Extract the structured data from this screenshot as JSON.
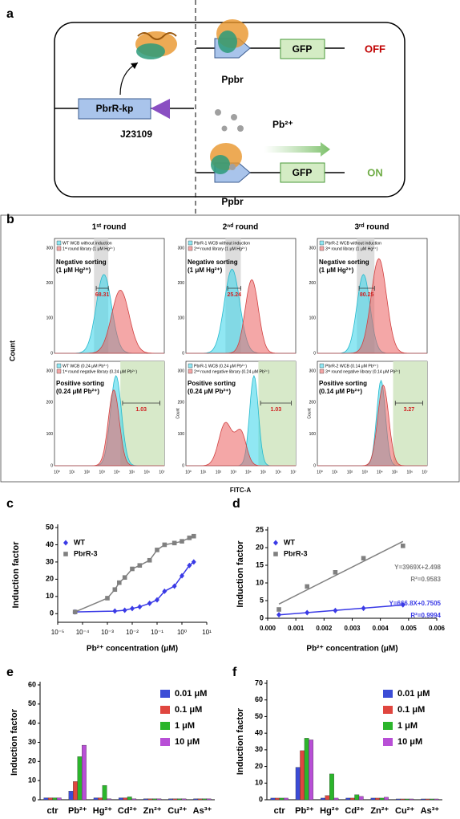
{
  "diagram": {
    "label": "a",
    "gene": "PbrR-kp",
    "promoter_left": "J23109",
    "gfp_top": "GFP",
    "gfp_bottom": "GFP",
    "off": "OFF",
    "on": "ON",
    "ppbr_top": "Ppbr",
    "ppbr_bottom": "Ppbr",
    "ion": "Pb²⁺"
  },
  "flow": {
    "label": "b",
    "rounds": [
      "1ˢᵗ round",
      "2ⁿᵈ round",
      "3ʳᵈ round"
    ],
    "xticks": [
      "10⁰",
      "10¹",
      "10²",
      "10³",
      "10⁴",
      "10⁵",
      "10⁶",
      "10⁷"
    ],
    "xlabel": "FITC-A",
    "ylabel": "Count",
    "panels": [
      {
        "legend": [
          "WT WCB without induction",
          "1ˢᵗ round library (1 μM Hg²⁺)"
        ],
        "sorting": [
          "Negative sorting",
          "(1 μM Hg²⁺)"
        ],
        "value": "68.31",
        "yticks": [
          "0",
          "100",
          "200",
          "300"
        ]
      },
      {
        "legend": [
          "PbrR-1 WCB without induction",
          "2ⁿᵈ round library (1 μM Hg²⁺)"
        ],
        "sorting": [
          "Negative sorting",
          "(1 μM Hg²⁺)"
        ],
        "value": "25.24",
        "yticks": [
          "0",
          "100",
          "200",
          "300"
        ]
      },
      {
        "legend": [
          "PbrR-2 WCB without induction",
          "3ʳᵈ round library (1 μM Hg²⁺)"
        ],
        "sorting": [
          "Negative sorting",
          "(1 μM Hg²⁺)"
        ],
        "value": "80.25",
        "yticks": [
          "0",
          "100",
          "200",
          "300"
        ]
      },
      {
        "legend": [
          "WT WCB (0.24 μM Pb²⁺)",
          "1ˢᵗ round negative library (0.24 μM Pb²⁺)"
        ],
        "sorting": [
          "Positive sorting",
          "(0.24 μM Pb²⁺)"
        ],
        "value": "1.03",
        "yticks": [
          "0",
          "100",
          "200",
          "300"
        ]
      },
      {
        "legend": [
          "PbrR-1 WCB (0.24 μM Pb²⁺)",
          "2ⁿᵈ round negative library (0.24 μM Pb²⁺)"
        ],
        "sorting": [
          "Positive sorting",
          "(0.24 μM Pb²⁺)"
        ],
        "value": "1.03",
        "yticks": [
          "0",
          "100",
          "200",
          "300"
        ]
      },
      {
        "legend": [
          "PbrR-2 WCB (0.14 μM Pb²⁺)",
          "3ʳᵈ round negative library (0.14 μM Pb²⁺)"
        ],
        "sorting": [
          "Positive sorting",
          "(0.14 μM Pb²⁺)"
        ],
        "value": "3.27",
        "yticks": [
          "0",
          "100",
          "200",
          "300"
        ]
      }
    ]
  },
  "chart_data": [
    {
      "type": "line",
      "label": "c",
      "xscale": "log",
      "xlabel": "Pb²⁺ concentration (μM)",
      "ylabel": "Induction factor",
      "xlim": [
        1e-05,
        10
      ],
      "xticks": [
        {
          "value": 1e-05,
          "label": "10⁻⁵"
        },
        {
          "value": 0.0001,
          "label": "10⁻⁴"
        },
        {
          "value": 0.001,
          "label": "10⁻³"
        },
        {
          "value": 0.01,
          "label": "10⁻²"
        },
        {
          "value": 0.1,
          "label": "10⁻¹"
        },
        {
          "value": 1,
          "label": "10⁰"
        },
        {
          "value": 10,
          "label": "10¹"
        }
      ],
      "ylim": [
        -5,
        50
      ],
      "yticks": [
        0,
        10,
        20,
        30,
        40,
        50
      ],
      "series": [
        {
          "name": "WT",
          "color": "#3a3ae6",
          "marker": "diamond",
          "x": [
            5e-05,
            0.002,
            0.005,
            0.01,
            0.02,
            0.05,
            0.1,
            0.2,
            0.5,
            1,
            2,
            3
          ],
          "values": [
            1,
            1.5,
            2,
            3,
            4,
            6,
            8,
            13,
            16,
            22,
            28,
            30
          ]
        },
        {
          "name": "PbrR-3",
          "color": "#808080",
          "marker": "square",
          "x": [
            5e-05,
            0.001,
            0.002,
            0.003,
            0.005,
            0.01,
            0.02,
            0.05,
            0.1,
            0.2,
            0.5,
            1,
            2,
            3
          ],
          "values": [
            1,
            9,
            14,
            18,
            21,
            26,
            28,
            31,
            37,
            40,
            41,
            42,
            44,
            45
          ]
        }
      ]
    },
    {
      "type": "scatter",
      "label": "d",
      "xlabel": "Pb²⁺ concentration (μM)",
      "ylabel": "Induction factor",
      "xlim": [
        0,
        0.006
      ],
      "xticks": [
        {
          "value": 0,
          "label": "0.000"
        },
        0.001,
        0.002,
        0.003,
        0.004,
        0.005,
        0.006
      ],
      "ylim": [
        0,
        25
      ],
      "yticks": [
        0,
        5,
        10,
        15,
        20,
        25
      ],
      "series": [
        {
          "name": "WT",
          "color": "#3a3ae6",
          "marker": "diamond",
          "x": [
            0.0004,
            0.0014,
            0.0024,
            0.0034,
            0.0048
          ],
          "values": [
            1,
            1.6,
            2.2,
            2.8,
            3.8
          ]
        },
        {
          "name": "PbrR-3",
          "color": "#808080",
          "marker": "square",
          "x": [
            0.0004,
            0.0014,
            0.0024,
            0.0034,
            0.0048
          ],
          "values": [
            2.5,
            9,
            13,
            17,
            20.5
          ]
        }
      ],
      "annotations": [
        {
          "text": "Y=3969X+2.498",
          "color": "#808080"
        },
        {
          "text": "R²=0.9583",
          "color": "#808080"
        },
        {
          "text": "Y=666.8X+0.7505",
          "color": "#3a3ae6"
        },
        {
          "text": "R²=0.9994",
          "color": "#3a3ae6"
        }
      ]
    },
    {
      "type": "bar",
      "label": "e",
      "ylabel": "Induction factor",
      "categories": [
        "ctr",
        "Pb²⁺",
        "Hg²⁺",
        "Cd²⁺",
        "Zn²⁺",
        "Cu²⁺",
        "As³⁺"
      ],
      "ylim": [
        0,
        60
      ],
      "yticks": [
        0,
        10,
        20,
        30,
        40,
        50,
        60
      ],
      "series": [
        {
          "name": "0.01 μM",
          "color": "#3b4cd6",
          "values": [
            1,
            4.5,
            1,
            1,
            0.5,
            0.5,
            0.5
          ]
        },
        {
          "name": "0.1 μM",
          "color": "#e0463f",
          "values": [
            1,
            9.5,
            1,
            1,
            0.5,
            0.5,
            0.5
          ]
        },
        {
          "name": "1 μM",
          "color": "#2bb52b",
          "values": [
            1,
            22.5,
            7.5,
            1.5,
            0.5,
            0.5,
            0.5
          ]
        },
        {
          "name": "10 μM",
          "color": "#b84fd6",
          "values": [
            1,
            28.5,
            0.5,
            0.5,
            0.5,
            0.5,
            0.5
          ]
        }
      ]
    },
    {
      "type": "bar",
      "label": "f",
      "ylabel": "Induction factor",
      "categories": [
        "ctr",
        "Pb²⁺",
        "Hg²⁺",
        "Cd²⁺",
        "Zn²⁺",
        "Cu²⁺",
        "As³⁺"
      ],
      "ylim": [
        0,
        70
      ],
      "yticks": [
        0,
        10,
        20,
        30,
        40,
        50,
        60,
        70
      ],
      "series": [
        {
          "name": "0.01 μM",
          "color": "#3b4cd6",
          "values": [
            1,
            19.5,
            1,
            1,
            1,
            0.5,
            0.5
          ]
        },
        {
          "name": "0.1 μM",
          "color": "#e0463f",
          "values": [
            1,
            29.5,
            2.5,
            1,
            1,
            0.5,
            0.5
          ]
        },
        {
          "name": "1 μM",
          "color": "#2bb52b",
          "values": [
            1,
            37,
            15.5,
            3,
            1,
            0.5,
            0.5
          ]
        },
        {
          "name": "10 μM",
          "color": "#b84fd6",
          "values": [
            1,
            36,
            1,
            2,
            1.5,
            0.5,
            0.5
          ]
        }
      ]
    }
  ]
}
